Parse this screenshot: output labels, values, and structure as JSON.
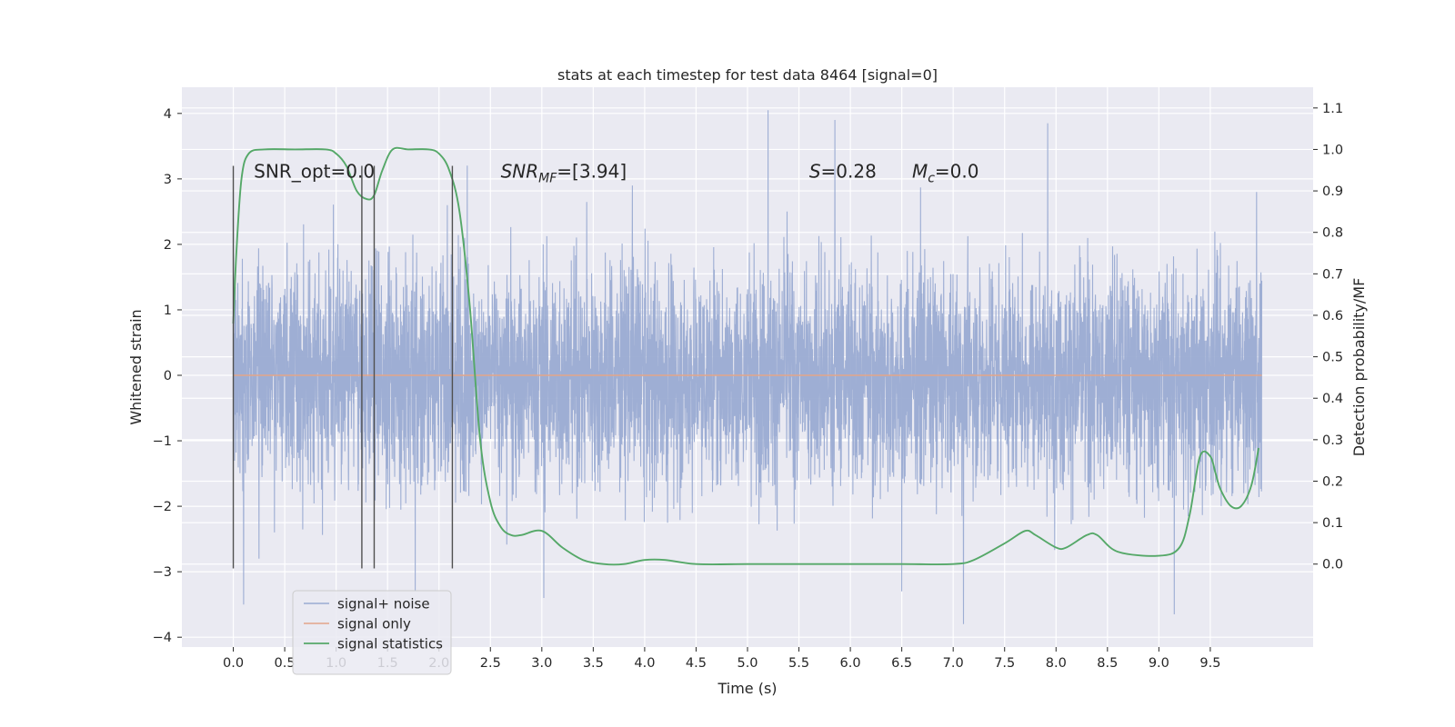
{
  "chart_data": {
    "type": "line",
    "title": "stats at each timestep for test data 8464 [signal=0]",
    "xlabel": "Time (s)",
    "ylabel": "Whitened strain",
    "ylabel_right": "Detection probability/MF",
    "xlim": [
      -0.5,
      10.5
    ],
    "ylim": [
      -4.15,
      4.4
    ],
    "ylim_right": [
      -0.2,
      1.15
    ],
    "x_ticks": [
      0.0,
      0.5,
      1.0,
      1.5,
      2.0,
      2.5,
      3.0,
      3.5,
      4.0,
      4.5,
      5.0,
      5.5,
      6.0,
      6.5,
      7.0,
      7.5,
      8.0,
      8.5,
      9.0,
      9.5
    ],
    "x_tick_labels": [
      "0.0",
      "0.5",
      "1.0",
      "1.5",
      "2.0",
      "2.5",
      "3.0",
      "3.5",
      "4.0",
      "4.5",
      "5.0",
      "5.5",
      "6.0",
      "6.5",
      "7.0",
      "7.5",
      "8.0",
      "8.5",
      "9.0",
      "9.5"
    ],
    "y_ticks": [
      -4,
      -3,
      -2,
      -1,
      0,
      1,
      2,
      3,
      4
    ],
    "y_tick_labels": [
      "−4",
      "−3",
      "−2",
      "−1",
      "0",
      "1",
      "2",
      "3",
      "4"
    ],
    "y_right_ticks": [
      0.0,
      0.1,
      0.2,
      0.3,
      0.4,
      0.5,
      0.6,
      0.7,
      0.8,
      0.9,
      1.0,
      1.1
    ],
    "y_right_tick_labels": [
      "0.0",
      "0.1",
      "0.2",
      "0.3",
      "0.4",
      "0.5",
      "0.6",
      "0.7",
      "0.8",
      "0.9",
      "1.0",
      "1.1"
    ],
    "grid": true,
    "legend_position": "lower-left",
    "noise": {
      "name": "signal+ noise",
      "color": "#9aabd2",
      "x_range": [
        0.0,
        10.0
      ],
      "typical_abs": 1.4,
      "peak_max": 4.05,
      "peak_min": -3.8,
      "peaks": [
        [
          0.0,
          2.4
        ],
        [
          0.1,
          -3.5
        ],
        [
          0.25,
          -2.8
        ],
        [
          1.77,
          -3.3
        ],
        [
          2.08,
          2.6
        ],
        [
          3.02,
          -3.4
        ],
        [
          3.88,
          2.9
        ],
        [
          5.2,
          4.05
        ],
        [
          5.85,
          3.9
        ],
        [
          6.5,
          -3.3
        ],
        [
          7.1,
          -3.8
        ],
        [
          7.92,
          3.85
        ],
        [
          9.15,
          -3.65
        ],
        [
          9.95,
          2.8
        ]
      ]
    },
    "series": [
      {
        "name": "signal only",
        "color": "#e3a589",
        "axis": "left",
        "x": [
          0.0,
          10.0
        ],
        "y": [
          0.0,
          0.0
        ]
      },
      {
        "name": "signal statistics",
        "color": "#55a868",
        "axis": "right",
        "x": [
          0.0,
          0.03,
          0.08,
          0.15,
          0.3,
          0.6,
          0.9,
          1.0,
          1.1,
          1.2,
          1.3,
          1.37,
          1.45,
          1.55,
          1.7,
          1.9,
          2.0,
          2.1,
          2.2,
          2.3,
          2.4,
          2.5,
          2.6,
          2.7,
          2.8,
          3.0,
          3.2,
          3.4,
          3.6,
          3.8,
          4.0,
          4.2,
          4.5,
          5.0,
          5.5,
          6.0,
          6.5,
          7.0,
          7.2,
          7.5,
          7.7,
          7.8,
          8.0,
          8.1,
          8.3,
          8.4,
          8.6,
          9.0,
          9.2,
          9.3,
          9.4,
          9.5,
          9.55,
          9.6,
          9.7,
          9.8,
          9.9,
          9.97
        ],
        "y": [
          0.58,
          0.75,
          0.93,
          0.99,
          1.0,
          1.0,
          1.0,
          0.99,
          0.96,
          0.9,
          0.88,
          0.89,
          0.95,
          1.0,
          1.0,
          1.0,
          0.99,
          0.95,
          0.85,
          0.62,
          0.3,
          0.15,
          0.09,
          0.07,
          0.07,
          0.08,
          0.04,
          0.01,
          0.0,
          0.0,
          0.01,
          0.01,
          0.0,
          0.0,
          0.0,
          0.0,
          0.0,
          0.0,
          0.01,
          0.05,
          0.08,
          0.07,
          0.04,
          0.04,
          0.07,
          0.07,
          0.03,
          0.02,
          0.04,
          0.12,
          0.26,
          0.26,
          0.22,
          0.18,
          0.14,
          0.14,
          0.19,
          0.28
        ]
      }
    ],
    "vlines_x": [
      0.0,
      1.25,
      1.37,
      2.13
    ],
    "vlines_ylim": [
      -2.95,
      3.2
    ],
    "annotations": [
      {
        "text": "SNR_opt=0.0",
        "x": 0.2,
        "y": 3.1
      },
      {
        "text": "SNR_MF=[3.94]",
        "main": "SNR",
        "sub": "MF",
        "tail": "=[3.94]",
        "x": 2.6,
        "y": 3.1
      },
      {
        "text": "S=0.28",
        "main": "S",
        "tail": "=0.28",
        "x": 5.6,
        "y": 3.1
      },
      {
        "text": "M_c=0.0",
        "main": "M",
        "sub": "c",
        "tail": "=0.0",
        "x": 6.6,
        "y": 3.1
      }
    ]
  }
}
